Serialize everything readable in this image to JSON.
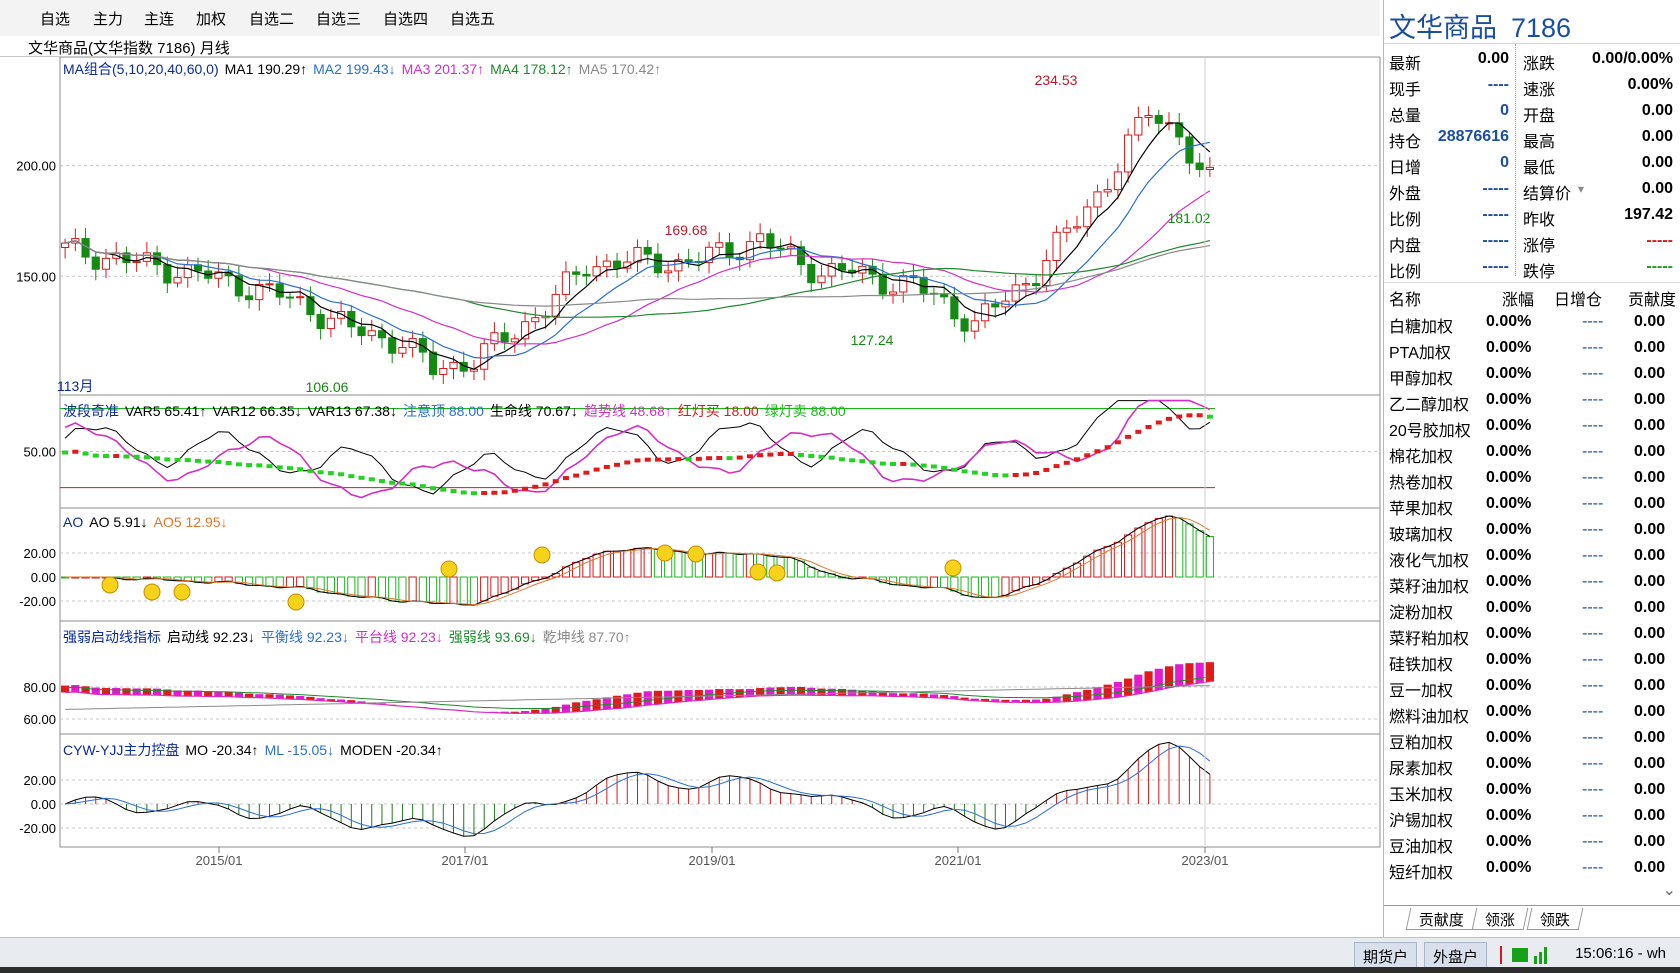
{
  "menu": [
    "自选",
    "主力",
    "主连",
    "加权",
    "自选二",
    "自选三",
    "自选四",
    "自选五"
  ],
  "chart_title": "文华商品(文华指数  7186) 月线",
  "main_panel": {
    "legend": [
      {
        "text": "MA组合(5,10,20,40,60,0)",
        "color": "#0b2b9a"
      },
      {
        "text": "MA1 190.29↑",
        "color": "#000000"
      },
      {
        "text": "MA2 199.43↓",
        "color": "#2a6fd6"
      },
      {
        "text": "MA3 201.37↑",
        "color": "#d42fc4"
      },
      {
        "text": "MA4 178.12↑",
        "color": "#1e8a2e"
      },
      {
        "text": "MA5 170.42↑",
        "color": "#8a8a8a"
      }
    ],
    "axis_labels": [
      "200.00",
      "150.00"
    ],
    "annotations": {
      "high": "234.53",
      "mid_high": "169.68",
      "low": "106.06",
      "mid_low": "127.24",
      "last_low": "181.02"
    },
    "bar_count_label": "113月"
  },
  "osc_panel": {
    "legend": [
      {
        "text": "波段奇准",
        "color": "#0b2b9a"
      },
      {
        "text": "VAR5 65.41↑",
        "color": "#000000"
      },
      {
        "text": "VAR12 66.35↓",
        "color": "#000000"
      },
      {
        "text": "VAR13 67.38↓",
        "color": "#000000"
      },
      {
        "text": "注意顶 88.00",
        "color": "#2a6fd6"
      },
      {
        "text": "生命线 70.67↓",
        "color": "#000000"
      },
      {
        "text": "趋势线 48.68↑",
        "color": "#d42fc4"
      },
      {
        "text": "红灯买 18.00",
        "color": "#d61a1a"
      },
      {
        "text": "绿灯卖 88.00",
        "color": "#19b819"
      }
    ],
    "axis_labels": [
      "50.00"
    ]
  },
  "ao_panel": {
    "legend": [
      {
        "text": "AO",
        "color": "#0b2b9a"
      },
      {
        "text": "AO 5.91↓",
        "color": "#000000"
      },
      {
        "text": "AO5 12.95↓",
        "color": "#e0762a"
      }
    ],
    "axis_labels": [
      "20.00",
      "0.00",
      "-20.00"
    ]
  },
  "strength_panel": {
    "legend": [
      {
        "text": "强弱启动线指标",
        "color": "#0b2b9a"
      },
      {
        "text": "启动线 92.23↓",
        "color": "#000000"
      },
      {
        "text": "平衡线 92.23↓",
        "color": "#2a6fd6"
      },
      {
        "text": "平台线 92.23↓",
        "color": "#d42fc4"
      },
      {
        "text": "强弱线 93.69↓",
        "color": "#1e8a2e"
      },
      {
        "text": "乾坤线 87.70↑",
        "color": "#8a8a8a"
      }
    ],
    "axis_labels": [
      "80.00",
      "60.00"
    ]
  },
  "cyw_panel": {
    "legend": [
      {
        "text": "CYW-YJJ主力控盘",
        "color": "#0b2b9a"
      },
      {
        "text": "MO -20.34↑",
        "color": "#000000"
      },
      {
        "text": "ML -15.05↓",
        "color": "#2a6fd6"
      },
      {
        "text": "MODEN -20.34↑",
        "color": "#000000"
      }
    ],
    "axis_labels": [
      "20.00",
      "0.00",
      "-20.00"
    ]
  },
  "x_axis": [
    "2015/01",
    "2017/01",
    "2019/01",
    "2021/01",
    "2023/01"
  ],
  "quote": {
    "name": "文华商品",
    "code": "7186",
    "left": [
      {
        "label": "最新",
        "value": "0.00",
        "color": "#000000"
      },
      {
        "label": "现手",
        "value": "----",
        "color": "#1a4fa0"
      },
      {
        "label": "总量",
        "value": "0",
        "color": "#1a4fa0"
      },
      {
        "label": "持仓",
        "value": "28876616",
        "color": "#1a4fa0"
      },
      {
        "label": "日增",
        "value": "0",
        "color": "#1a4fa0"
      },
      {
        "label": "外盘",
        "value": "-----",
        "color": "#1a4fa0"
      },
      {
        "label": "比例",
        "value": "-----",
        "color": "#1a4fa0"
      },
      {
        "label": "内盘",
        "value": "-----",
        "color": "#1a4fa0"
      },
      {
        "label": "比例",
        "value": "-----",
        "color": "#1a4fa0"
      }
    ],
    "right": [
      {
        "label": "涨跌",
        "value": "0.00/0.00%",
        "color": "#000000"
      },
      {
        "label": "速涨",
        "value": "0.00%",
        "color": "#000000"
      },
      {
        "label": "开盘",
        "value": "0.00",
        "color": "#000000"
      },
      {
        "label": "最高",
        "value": "0.00",
        "color": "#000000"
      },
      {
        "label": "最低",
        "value": "0.00",
        "color": "#000000"
      },
      {
        "label": "结算价",
        "value": "0.00",
        "color": "#000000"
      },
      {
        "label": "昨收",
        "value": "197.42",
        "color": "#000000"
      },
      {
        "label": "涨停",
        "value": "-----",
        "color": "#d61a1a"
      },
      {
        "label": "跌停",
        "value": "-----",
        "color": "#19a019"
      }
    ]
  },
  "list": {
    "headers": [
      "名称",
      "涨幅",
      "日增仓",
      "贡献度"
    ],
    "rows": [
      {
        "name": "白糖加权",
        "pct": "0.00%",
        "inc": "----",
        "contrib": "0.00"
      },
      {
        "name": "PTA加权",
        "pct": "0.00%",
        "inc": "----",
        "contrib": "0.00"
      },
      {
        "name": "甲醇加权",
        "pct": "0.00%",
        "inc": "----",
        "contrib": "0.00"
      },
      {
        "name": "乙二醇加权",
        "pct": "0.00%",
        "inc": "----",
        "contrib": "0.00"
      },
      {
        "name": "20号胶加权",
        "pct": "0.00%",
        "inc": "----",
        "contrib": "0.00"
      },
      {
        "name": "棉花加权",
        "pct": "0.00%",
        "inc": "----",
        "contrib": "0.00"
      },
      {
        "name": "热卷加权",
        "pct": "0.00%",
        "inc": "----",
        "contrib": "0.00"
      },
      {
        "name": "苹果加权",
        "pct": "0.00%",
        "inc": "----",
        "contrib": "0.00"
      },
      {
        "name": "玻璃加权",
        "pct": "0.00%",
        "inc": "----",
        "contrib": "0.00"
      },
      {
        "name": "液化气加权",
        "pct": "0.00%",
        "inc": "----",
        "contrib": "0.00"
      },
      {
        "name": "菜籽油加权",
        "pct": "0.00%",
        "inc": "----",
        "contrib": "0.00"
      },
      {
        "name": "淀粉加权",
        "pct": "0.00%",
        "inc": "----",
        "contrib": "0.00"
      },
      {
        "name": "菜籽粕加权",
        "pct": "0.00%",
        "inc": "----",
        "contrib": "0.00"
      },
      {
        "name": "硅铁加权",
        "pct": "0.00%",
        "inc": "----",
        "contrib": "0.00"
      },
      {
        "name": "豆一加权",
        "pct": "0.00%",
        "inc": "----",
        "contrib": "0.00"
      },
      {
        "name": "燃料油加权",
        "pct": "0.00%",
        "inc": "----",
        "contrib": "0.00"
      },
      {
        "name": "豆粕加权",
        "pct": "0.00%",
        "inc": "----",
        "contrib": "0.00"
      },
      {
        "name": "尿素加权",
        "pct": "0.00%",
        "inc": "----",
        "contrib": "0.00"
      },
      {
        "name": "玉米加权",
        "pct": "0.00%",
        "inc": "----",
        "contrib": "0.00"
      },
      {
        "name": "沪锡加权",
        "pct": "0.00%",
        "inc": "----",
        "contrib": "0.00"
      },
      {
        "name": "豆油加权",
        "pct": "0.00%",
        "inc": "----",
        "contrib": "0.00"
      },
      {
        "name": "短纤加权",
        "pct": "0.00%",
        "inc": "----",
        "contrib": "0.00"
      }
    ]
  },
  "tabs": [
    "贡献度",
    "领涨",
    "领跌"
  ],
  "status": {
    "btn1": "期货户",
    "btn2": "外盘户",
    "time": "15:06:16 - wh"
  },
  "colors": {
    "up": "#d61a1a",
    "down": "#19a019",
    "accent": "#1a4fa0"
  }
}
